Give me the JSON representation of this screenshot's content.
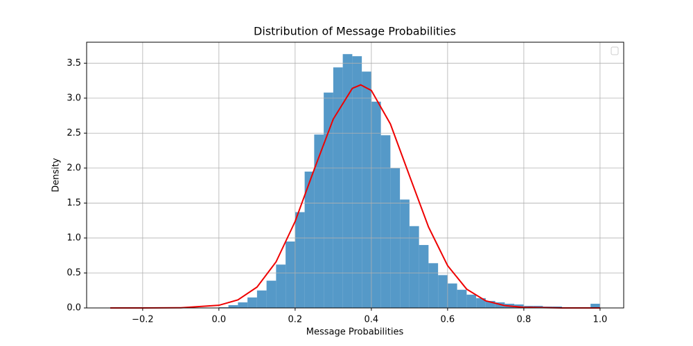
{
  "chart_data": {
    "type": "histogram",
    "title": "Distribution of Message Probabilities",
    "x_label": "Message Probabilities",
    "y_label": "Density",
    "bins": [
      0,
      0.025,
      0.05,
      0.075,
      0.1,
      0.125,
      0.15,
      0.175,
      0.2,
      0.225,
      0.25,
      0.275,
      0.3,
      0.325,
      0.35,
      0.375,
      0.4,
      0.425,
      0.45,
      0.475,
      0.5,
      0.525,
      0.55,
      0.575,
      0.6,
      0.625,
      0.65,
      0.675,
      0.7,
      0.725,
      0.75,
      0.775,
      0.8,
      0.825,
      0.85,
      0.875,
      0.9,
      0.925,
      0.95,
      0.975,
      1.0
    ],
    "values": [
      0.01,
      0.04,
      0.08,
      0.15,
      0.25,
      0.39,
      0.62,
      0.95,
      1.37,
      1.95,
      2.48,
      3.08,
      3.44,
      3.63,
      3.6,
      3.38,
      2.95,
      2.47,
      2.0,
      1.55,
      1.17,
      0.9,
      0.64,
      0.47,
      0.35,
      0.26,
      0.19,
      0.14,
      0.1,
      0.08,
      0.06,
      0.05,
      0.03,
      0.03,
      0.02,
      0.02,
      0.01,
      0.01,
      0.01,
      0.06
    ],
    "color": "#5599c8",
    "curve": {
      "type": "line",
      "color": "#ee0000",
      "x": [
        -0.285,
        -0.2,
        -0.1,
        0,
        0.05,
        0.1,
        0.15,
        0.2,
        0.25,
        0.3,
        0.35,
        0.372,
        0.4,
        0.45,
        0.5,
        0.55,
        0.6,
        0.65,
        0.7,
        0.75,
        0.8,
        0.9,
        1.0
      ],
      "values": [
        0,
        0.0001,
        0.0026,
        0.038,
        0.115,
        0.298,
        0.659,
        1.237,
        1.98,
        2.7,
        3.14,
        3.19,
        3.11,
        2.63,
        1.89,
        1.157,
        0.605,
        0.269,
        0.102,
        0.033,
        0.009,
        0.0004,
        0
      ]
    },
    "xlim": [
      -0.347,
      1.062
    ],
    "ylim": [
      0,
      3.8
    ],
    "xticks": [
      {
        "value": -0.2,
        "label": "−0.2"
      },
      {
        "value": 0,
        "label": "0.0"
      },
      0.2,
      0.4,
      0.6,
      0.8,
      {
        "value": 1,
        "label": "1.0"
      }
    ],
    "yticks": [
      {
        "value": 0,
        "label": "0.0"
      },
      0.5,
      {
        "value": 1,
        "label": "1.0"
      },
      1.5,
      {
        "value": 2,
        "label": "2.0"
      },
      2.5,
      {
        "value": 3,
        "label": "3.0"
      },
      3.5
    ],
    "grid": true,
    "legend": "upper right"
  }
}
